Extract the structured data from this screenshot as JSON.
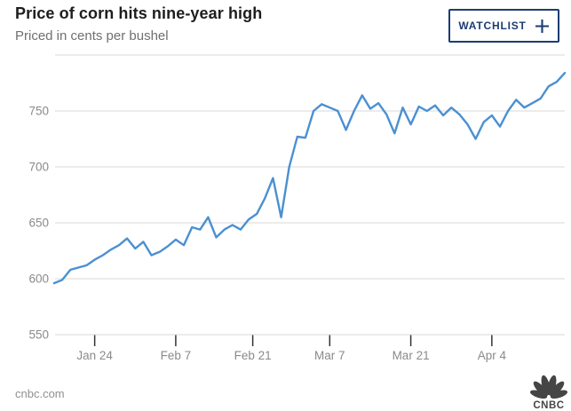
{
  "header": {
    "title": "Price of corn hits nine-year high",
    "subtitle": "Priced in cents per bushel",
    "watchlist_button": {
      "label": "WATCHLIST"
    }
  },
  "footer": {
    "source": "cnbc.com",
    "logo_text": "CNBC"
  },
  "colors": {
    "line": "#4a90d2",
    "grid": "#d8d8d8",
    "tick": "#333333",
    "axis_label": "#8a8a8a",
    "navy": "#1b3d71",
    "logo": "#454545"
  },
  "chart_data": {
    "type": "line",
    "title": "Price of corn hits nine-year high",
    "units": "cents per bushel",
    "x": [
      "Jan 14",
      "Jan 18",
      "Jan 19",
      "Jan 20",
      "Jan 21",
      "Jan 24",
      "Jan 25",
      "Jan 26",
      "Jan 27",
      "Jan 28",
      "Jan 31",
      "Feb 1",
      "Feb 2",
      "Feb 3",
      "Feb 4",
      "Feb 7",
      "Feb 8",
      "Feb 9",
      "Feb 10",
      "Feb 11",
      "Feb 14",
      "Feb 15",
      "Feb 16",
      "Feb 17",
      "Feb 18",
      "Feb 22",
      "Feb 23",
      "Feb 24",
      "Feb 25",
      "Feb 28",
      "Mar 1",
      "Mar 2",
      "Mar 3",
      "Mar 4",
      "Mar 7",
      "Mar 8",
      "Mar 9",
      "Mar 10",
      "Mar 11",
      "Mar 14",
      "Mar 15",
      "Mar 16",
      "Mar 17",
      "Mar 18",
      "Mar 21",
      "Mar 22",
      "Mar 23",
      "Mar 24",
      "Mar 25",
      "Mar 28",
      "Mar 29",
      "Mar 30",
      "Mar 31",
      "Apr 1",
      "Apr 4",
      "Apr 5",
      "Apr 6",
      "Apr 7",
      "Apr 8",
      "Apr 11",
      "Apr 12",
      "Apr 13",
      "Apr 14",
      "Apr 18"
    ],
    "values": [
      596,
      599,
      608,
      610,
      612,
      617,
      621,
      626,
      630,
      636,
      627,
      633,
      621,
      624,
      629,
      635,
      630,
      646,
      644,
      655,
      637,
      644,
      648,
      644,
      653,
      658,
      672,
      690,
      655,
      700,
      727,
      726,
      750,
      756,
      753,
      750,
      733,
      750,
      764,
      752,
      757,
      747,
      730,
      753,
      738,
      754,
      750,
      755,
      746,
      753,
      747,
      738,
      725,
      740,
      746,
      736,
      750,
      760,
      753,
      757,
      761,
      772,
      776,
      784
    ],
    "x_tick_labels": [
      "Jan 24",
      "Feb 7",
      "Feb 21",
      "Mar 7",
      "Mar 21",
      "Apr 4"
    ],
    "x_tick_idx": [
      5,
      15,
      24.5,
      34,
      44,
      54
    ],
    "y_ticks": [
      550,
      600,
      650,
      700,
      750
    ],
    "y_grid": [
      550,
      600,
      650,
      700,
      750,
      800
    ],
    "ylim": [
      550,
      800
    ],
    "grid": true,
    "legend": false
  }
}
